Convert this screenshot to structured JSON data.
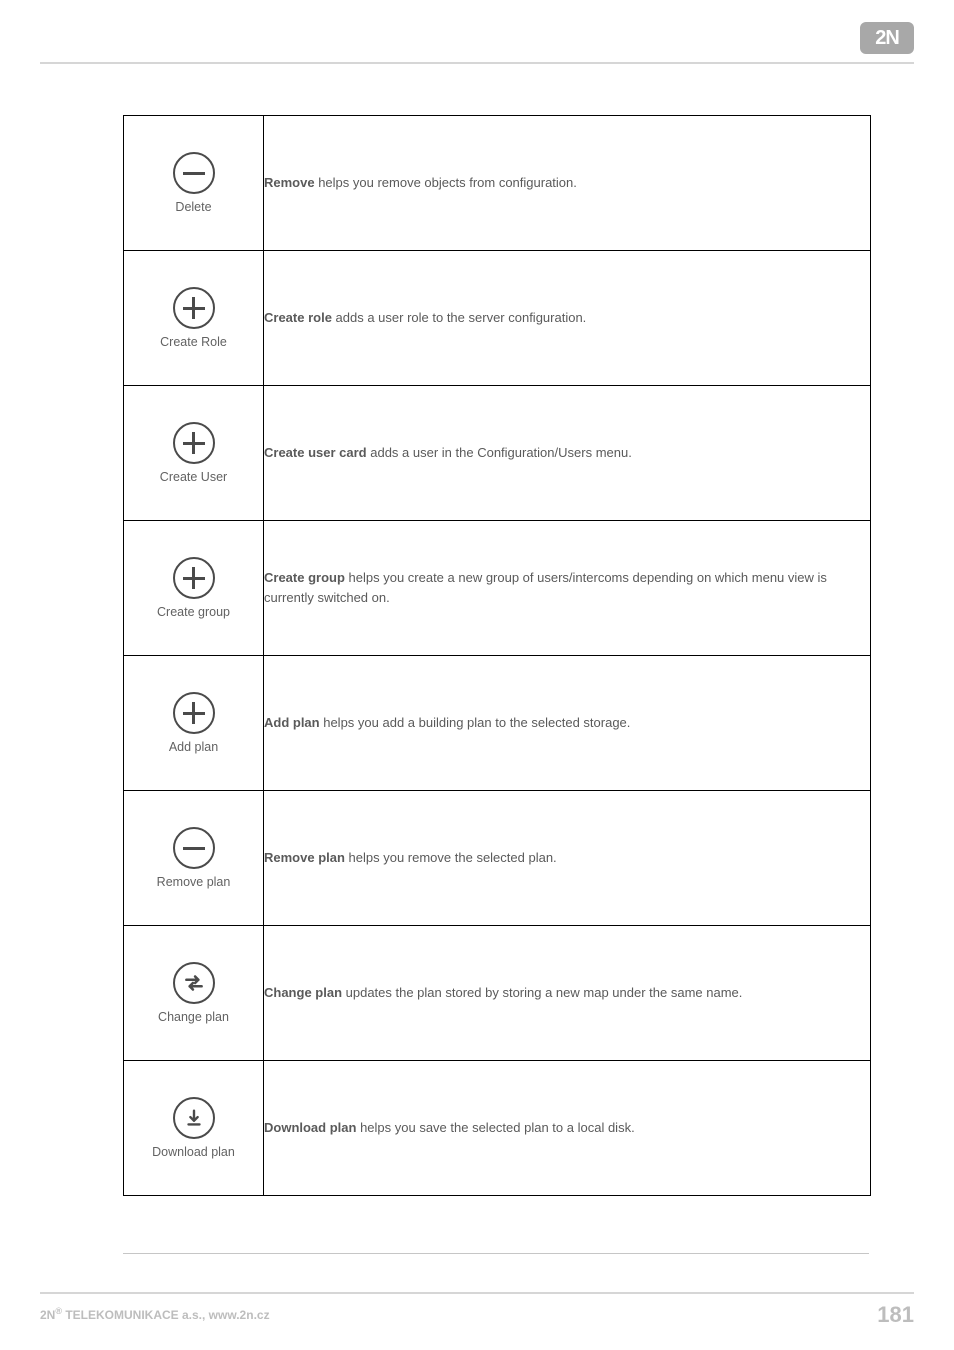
{
  "logo": {
    "text": "2N"
  },
  "rows": [
    {
      "icon_type": "minus",
      "icon_label": "Delete",
      "bold": "Remove",
      "rest": " helps you remove objects from configuration."
    },
    {
      "icon_type": "plus",
      "icon_label": "Create Role",
      "bold": "Create role",
      "rest": " adds a user role to the server configuration."
    },
    {
      "icon_type": "plus",
      "icon_label": "Create User",
      "bold": "Create user card",
      "rest": " adds a user in the Configuration/Users menu."
    },
    {
      "icon_type": "plus",
      "icon_label": "Create group",
      "bold": "Create group",
      "rest": " helps you create a new group of users/intercoms depending on which menu view is currently switched on."
    },
    {
      "icon_type": "plus",
      "icon_label": "Add plan",
      "bold": "Add plan",
      "rest": " helps you add a building plan to the selected storage."
    },
    {
      "icon_type": "minus",
      "icon_label": "Remove plan",
      "bold": "Remove plan",
      "rest": " helps you remove the selected plan."
    },
    {
      "icon_type": "swap",
      "icon_label": "Change plan",
      "bold": "Change plan",
      "rest": " updates the plan stored by storing a new map under the same name."
    },
    {
      "icon_type": "download",
      "icon_label": "Download plan",
      "bold": "Download plan",
      "rest": " helps you save the selected plan to a local disk."
    }
  ],
  "footer": {
    "left_prefix": "2N",
    "left_sup": "®",
    "left_rest": " TELEKOMUNIKACE a.s., www.2n.cz",
    "page": "181"
  },
  "colors": {
    "text": "#5a5a5a",
    "icon_stroke": "#4a4a4a",
    "rule": "#d6d6d6",
    "footer_text": "#bdbdbd"
  }
}
